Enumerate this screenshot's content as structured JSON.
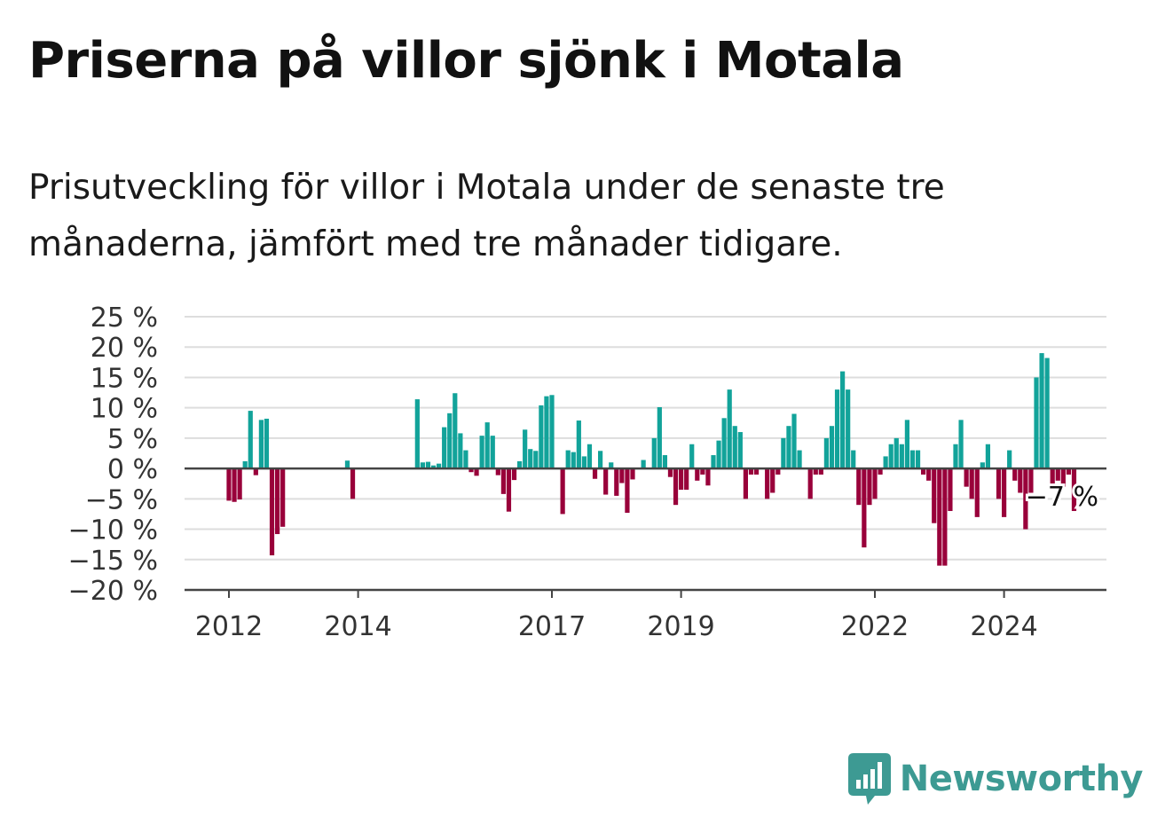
{
  "header": {
    "title": "Priserna på villor sjönk i Motala",
    "subtitle": "Prisutveckling för villor i Motala under de senaste tre månaderna, jämfört med tre månader tidigare."
  },
  "brand": {
    "name": "Newsworthy"
  },
  "colors": {
    "positive": "#12a39a",
    "negative": "#99003a",
    "grid": "#dddddd",
    "axis": "#444444"
  },
  "chart_data": {
    "type": "bar",
    "title": "",
    "xlabel": "",
    "ylabel": "",
    "ylim": [
      -20,
      25
    ],
    "y_ticks": [
      25,
      20,
      15,
      10,
      5,
      0,
      -5,
      -10,
      -15,
      -20
    ],
    "y_tick_labels": [
      "25 %",
      "20 %",
      "15 %",
      "10 %",
      "5 %",
      "0 %",
      "−5 %",
      "−10 %",
      "−15 %",
      "−20 %"
    ],
    "x_ticks": [
      {
        "label": "2012",
        "year": 2012.0
      },
      {
        "label": "2014",
        "year": 2014.0
      },
      {
        "label": "2017",
        "year": 2017.0
      },
      {
        "label": "2019",
        "year": 2019.0
      },
      {
        "label": "2022",
        "year": 2022.0
      },
      {
        "label": "2024",
        "year": 2024.0
      }
    ],
    "grid": true,
    "annotation": {
      "label": "−7 %",
      "value": -7
    },
    "bars": [
      {
        "date": "2012-01",
        "value": -5.3
      },
      {
        "date": "2012-02",
        "value": -5.5
      },
      {
        "date": "2012-03",
        "value": -5.1
      },
      {
        "date": "2012-04",
        "value": 1.2
      },
      {
        "date": "2012-05",
        "value": 9.5
      },
      {
        "date": "2012-06",
        "value": -1.1
      },
      {
        "date": "2012-07",
        "value": 8.0
      },
      {
        "date": "2012-08",
        "value": 8.2
      },
      {
        "date": "2012-09",
        "value": -14.3
      },
      {
        "date": "2012-10",
        "value": -10.8
      },
      {
        "date": "2012-11",
        "value": -9.6
      },
      {
        "date": "2013-11",
        "value": 1.3
      },
      {
        "date": "2013-12",
        "value": -5.0
      },
      {
        "date": "2014-12",
        "value": 11.4
      },
      {
        "date": "2015-01",
        "value": 1.0
      },
      {
        "date": "2015-02",
        "value": 1.1
      },
      {
        "date": "2015-03",
        "value": 0.5
      },
      {
        "date": "2015-04",
        "value": 0.8
      },
      {
        "date": "2015-05",
        "value": 6.8
      },
      {
        "date": "2015-06",
        "value": 9.1
      },
      {
        "date": "2015-07",
        "value": 12.4
      },
      {
        "date": "2015-08",
        "value": 5.8
      },
      {
        "date": "2015-09",
        "value": 3.0
      },
      {
        "date": "2015-10",
        "value": -0.6
      },
      {
        "date": "2015-11",
        "value": -1.2
      },
      {
        "date": "2015-12",
        "value": 5.4
      },
      {
        "date": "2016-01",
        "value": 7.6
      },
      {
        "date": "2016-02",
        "value": 5.4
      },
      {
        "date": "2016-03",
        "value": -1.1
      },
      {
        "date": "2016-04",
        "value": -4.2
      },
      {
        "date": "2016-05",
        "value": -7.1
      },
      {
        "date": "2016-06",
        "value": -1.9
      },
      {
        "date": "2016-07",
        "value": 1.2
      },
      {
        "date": "2016-08",
        "value": 6.4
      },
      {
        "date": "2016-09",
        "value": 3.2
      },
      {
        "date": "2016-10",
        "value": 2.9
      },
      {
        "date": "2016-11",
        "value": 10.4
      },
      {
        "date": "2016-12",
        "value": 11.9
      },
      {
        "date": "2017-01",
        "value": 12.1
      },
      {
        "date": "2017-03",
        "value": -7.5
      },
      {
        "date": "2017-04",
        "value": 3.0
      },
      {
        "date": "2017-05",
        "value": 2.7
      },
      {
        "date": "2017-06",
        "value": 7.9
      },
      {
        "date": "2017-07",
        "value": 2.0
      },
      {
        "date": "2017-08",
        "value": 4.0
      },
      {
        "date": "2017-09",
        "value": -1.7
      },
      {
        "date": "2017-10",
        "value": 2.9
      },
      {
        "date": "2017-11",
        "value": -4.3
      },
      {
        "date": "2017-12",
        "value": 1.0
      },
      {
        "date": "2018-01",
        "value": -4.5
      },
      {
        "date": "2018-02",
        "value": -2.4
      },
      {
        "date": "2018-03",
        "value": -7.3
      },
      {
        "date": "2018-04",
        "value": -1.8
      },
      {
        "date": "2018-06",
        "value": 1.4
      },
      {
        "date": "2018-08",
        "value": 5.0
      },
      {
        "date": "2018-09",
        "value": 10.1
      },
      {
        "date": "2018-10",
        "value": 2.2
      },
      {
        "date": "2018-11",
        "value": -1.4
      },
      {
        "date": "2018-12",
        "value": -6.0
      },
      {
        "date": "2019-01",
        "value": -3.5
      },
      {
        "date": "2019-02",
        "value": -3.5
      },
      {
        "date": "2019-03",
        "value": 4.0
      },
      {
        "date": "2019-04",
        "value": -2.0
      },
      {
        "date": "2019-05",
        "value": -1.0
      },
      {
        "date": "2019-06",
        "value": -2.8
      },
      {
        "date": "2019-07",
        "value": 2.2
      },
      {
        "date": "2019-08",
        "value": 4.6
      },
      {
        "date": "2019-09",
        "value": 8.3
      },
      {
        "date": "2019-10",
        "value": 13.0
      },
      {
        "date": "2019-11",
        "value": 7.0
      },
      {
        "date": "2019-12",
        "value": 6.0
      },
      {
        "date": "2020-01",
        "value": -5.0
      },
      {
        "date": "2020-02",
        "value": -1.0
      },
      {
        "date": "2020-03",
        "value": -1.0
      },
      {
        "date": "2020-05",
        "value": -5.0
      },
      {
        "date": "2020-06",
        "value": -4.0
      },
      {
        "date": "2020-07",
        "value": -1.0
      },
      {
        "date": "2020-08",
        "value": 5.0
      },
      {
        "date": "2020-09",
        "value": 7.0
      },
      {
        "date": "2020-10",
        "value": 9.0
      },
      {
        "date": "2020-11",
        "value": 3.0
      },
      {
        "date": "2021-01",
        "value": -5.0
      },
      {
        "date": "2021-02",
        "value": -1.0
      },
      {
        "date": "2021-03",
        "value": -1.0
      },
      {
        "date": "2021-04",
        "value": 5.0
      },
      {
        "date": "2021-05",
        "value": 7.0
      },
      {
        "date": "2021-06",
        "value": 13.0
      },
      {
        "date": "2021-07",
        "value": 16.0
      },
      {
        "date": "2021-08",
        "value": 13.0
      },
      {
        "date": "2021-09",
        "value": 3.0
      },
      {
        "date": "2021-10",
        "value": -6.0
      },
      {
        "date": "2021-11",
        "value": -13.0
      },
      {
        "date": "2021-12",
        "value": -6.0
      },
      {
        "date": "2022-01",
        "value": -5.0
      },
      {
        "date": "2022-02",
        "value": -1.0
      },
      {
        "date": "2022-03",
        "value": 2.0
      },
      {
        "date": "2022-04",
        "value": 4.0
      },
      {
        "date": "2022-05",
        "value": 5.0
      },
      {
        "date": "2022-06",
        "value": 4.0
      },
      {
        "date": "2022-07",
        "value": 8.0
      },
      {
        "date": "2022-08",
        "value": 3.0
      },
      {
        "date": "2022-09",
        "value": 3.0
      },
      {
        "date": "2022-10",
        "value": -1.0
      },
      {
        "date": "2022-11",
        "value": -2.0
      },
      {
        "date": "2022-12",
        "value": -9.0
      },
      {
        "date": "2023-01",
        "value": -16.0
      },
      {
        "date": "2023-02",
        "value": -16.0
      },
      {
        "date": "2023-03",
        "value": -7.0
      },
      {
        "date": "2023-04",
        "value": 4.0
      },
      {
        "date": "2023-05",
        "value": 8.0
      },
      {
        "date": "2023-06",
        "value": -3.0
      },
      {
        "date": "2023-07",
        "value": -5.0
      },
      {
        "date": "2023-08",
        "value": -8.0
      },
      {
        "date": "2023-09",
        "value": 1.0
      },
      {
        "date": "2023-10",
        "value": 4.0
      },
      {
        "date": "2023-12",
        "value": -5.0
      },
      {
        "date": "2024-01",
        "value": -8.0
      },
      {
        "date": "2024-02",
        "value": 3.0
      },
      {
        "date": "2024-03",
        "value": -2.0
      },
      {
        "date": "2024-04",
        "value": -4.0
      },
      {
        "date": "2024-05",
        "value": -10.0
      },
      {
        "date": "2024-06",
        "value": -4.0
      },
      {
        "date": "2024-07",
        "value": 15.0
      },
      {
        "date": "2024-08",
        "value": 19.0
      },
      {
        "date": "2024-09",
        "value": 18.2
      },
      {
        "date": "2024-10",
        "value": -3.0
      },
      {
        "date": "2024-11",
        "value": -2.0
      },
      {
        "date": "2024-12",
        "value": -3.0
      },
      {
        "date": "2025-01",
        "value": -1.0
      },
      {
        "date": "2025-02",
        "value": -7.0
      }
    ]
  }
}
